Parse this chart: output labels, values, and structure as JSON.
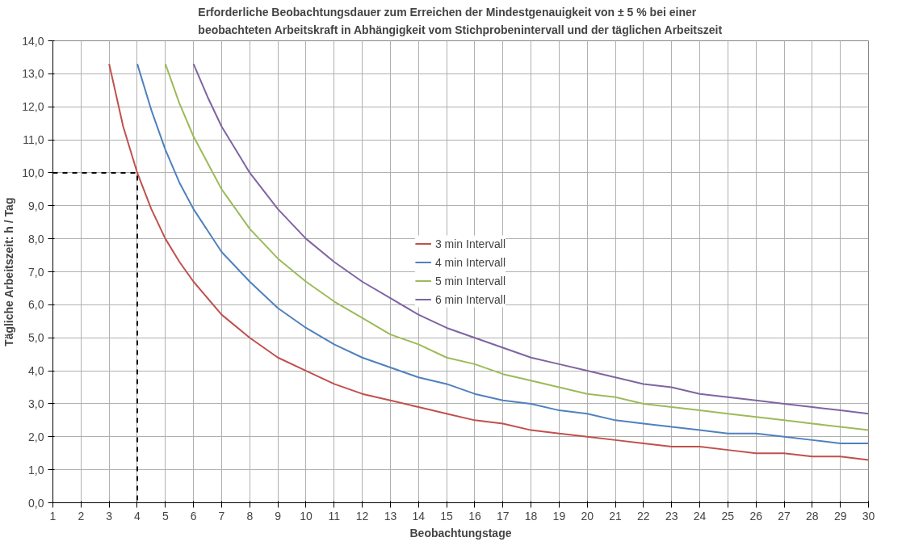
{
  "chart_data": {
    "type": "line",
    "title": "Erforderliche Beobachtungsdauer zum Erreichen der Mindestgenauigkeit von ± 5 % bei einer\nbeobachteten Arbeitskraft in Abhängigkeit vom Stichprobenintervall und der täglichen Arbeitszeit",
    "xlabel": "Beobachtungstage",
    "ylabel": "Tägliche Arbeitszeit: h / Tag",
    "xlim": [
      1,
      30
    ],
    "xticks": [
      1,
      2,
      3,
      4,
      5,
      6,
      7,
      8,
      9,
      10,
      11,
      12,
      13,
      14,
      15,
      16,
      17,
      18,
      19,
      20,
      21,
      22,
      23,
      24,
      25,
      26,
      27,
      28,
      29,
      30
    ],
    "ylim": [
      0,
      14
    ],
    "yticks": [
      {
        "value": 0,
        "label": "0,0"
      },
      {
        "value": 1,
        "label": "1,0"
      },
      {
        "value": 2,
        "label": "2,0"
      },
      {
        "value": 3,
        "label": "3,0"
      },
      {
        "value": 4,
        "label": "4,0"
      },
      {
        "value": 5,
        "label": "5,0"
      },
      {
        "value": 6,
        "label": "6,0"
      },
      {
        "value": 7,
        "label": "7,0"
      },
      {
        "value": 8,
        "label": "8,0"
      },
      {
        "value": 9,
        "label": "9,0"
      },
      {
        "value": 10,
        "label": "10,0"
      },
      {
        "value": 11,
        "label": "11,0"
      },
      {
        "value": 12,
        "label": "12,0"
      },
      {
        "value": 13,
        "label": "13,0"
      },
      {
        "value": 14,
        "label": "14,0"
      }
    ],
    "grid": true,
    "legend": "center",
    "line_style": "solid",
    "marker": "none",
    "series": [
      {
        "name": "3 min Intervall",
        "color": "#c0504d",
        "x": [
          3,
          3.5,
          4,
          4.5,
          5,
          5.5,
          6,
          7,
          8,
          9,
          10,
          11,
          12,
          13,
          14,
          15,
          16,
          17,
          18,
          19,
          20,
          21,
          22,
          23,
          24,
          25,
          26,
          27,
          28,
          29,
          30
        ],
        "values": [
          13.3,
          11.4,
          10.0,
          8.9,
          8.0,
          7.3,
          6.7,
          5.7,
          5.0,
          4.4,
          4.0,
          3.6,
          3.3,
          3.1,
          2.9,
          2.7,
          2.5,
          2.4,
          2.2,
          2.1,
          2.0,
          1.9,
          1.8,
          1.7,
          1.7,
          1.6,
          1.5,
          1.5,
          1.4,
          1.4,
          1.3
        ]
      },
      {
        "name": "4 min Intervall",
        "color": "#4f81bd",
        "x": [
          4,
          4.5,
          5,
          5.5,
          6,
          7,
          8,
          9,
          10,
          11,
          12,
          13,
          14,
          15,
          16,
          17,
          18,
          19,
          20,
          21,
          22,
          23,
          24,
          25,
          26,
          27,
          28,
          29,
          30
        ],
        "values": [
          13.3,
          11.9,
          10.7,
          9.7,
          8.9,
          7.6,
          6.7,
          5.9,
          5.3,
          4.8,
          4.4,
          4.1,
          3.8,
          3.6,
          3.3,
          3.1,
          3.0,
          2.8,
          2.7,
          2.5,
          2.4,
          2.3,
          2.2,
          2.1,
          2.1,
          2.0,
          1.9,
          1.8,
          1.8
        ]
      },
      {
        "name": "5 min Intervall",
        "color": "#9bbb59",
        "x": [
          5,
          5.5,
          6,
          6.5,
          7,
          8,
          9,
          10,
          11,
          12,
          13,
          14,
          15,
          16,
          17,
          18,
          19,
          20,
          21,
          22,
          23,
          24,
          25,
          26,
          27,
          28,
          29,
          30
        ],
        "values": [
          13.3,
          12.1,
          11.1,
          10.3,
          9.5,
          8.3,
          7.4,
          6.7,
          6.1,
          5.6,
          5.1,
          4.8,
          4.4,
          4.2,
          3.9,
          3.7,
          3.5,
          3.3,
          3.2,
          3.0,
          2.9,
          2.8,
          2.7,
          2.6,
          2.5,
          2.4,
          2.3,
          2.2
        ]
      },
      {
        "name": "6 min Intervall",
        "color": "#8064a2",
        "x": [
          6,
          6.5,
          7,
          7.5,
          8,
          9,
          10,
          11,
          12,
          13,
          14,
          15,
          16,
          17,
          18,
          19,
          20,
          21,
          22,
          23,
          24,
          25,
          26,
          27,
          28,
          29,
          30
        ],
        "values": [
          13.3,
          12.3,
          11.4,
          10.7,
          10.0,
          8.9,
          8.0,
          7.3,
          6.7,
          6.2,
          5.7,
          5.3,
          5.0,
          4.7,
          4.4,
          4.2,
          4.0,
          3.8,
          3.6,
          3.5,
          3.3,
          3.2,
          3.1,
          3.0,
          2.9,
          2.8,
          2.7
        ]
      },
      {
        "color": "#000000",
        "line_style": "dashed",
        "x": [
          1,
          4,
          4
        ],
        "values": [
          10,
          10,
          0
        ]
      }
    ]
  }
}
